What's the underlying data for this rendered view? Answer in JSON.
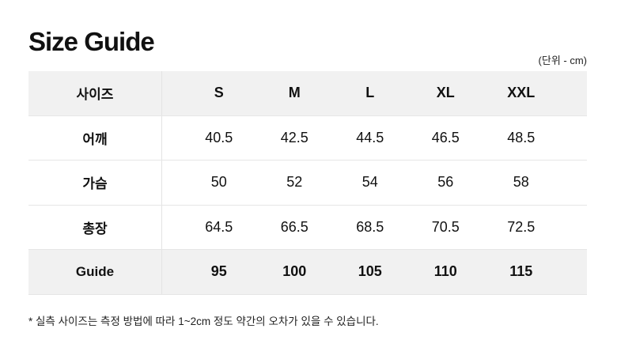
{
  "title": "Size Guide",
  "unit": "(단위 - cm)",
  "table": {
    "header": {
      "label": "사이즈",
      "sizes": [
        "S",
        "M",
        "L",
        "XL",
        "XXL"
      ]
    },
    "rows": [
      {
        "label": "어깨",
        "values": [
          "40.5",
          "42.5",
          "44.5",
          "46.5",
          "48.5"
        ]
      },
      {
        "label": "가슴",
        "values": [
          "50",
          "52",
          "54",
          "56",
          "58"
        ]
      },
      {
        "label": "총장",
        "values": [
          "64.5",
          "66.5",
          "68.5",
          "70.5",
          "72.5"
        ]
      }
    ],
    "guide": {
      "label": "Guide",
      "values": [
        "95",
        "100",
        "105",
        "110",
        "115"
      ]
    }
  },
  "note": "* 실측 사이즈는 측정 방법에 따라 1~2cm 정도 약간의 오차가 있을 수 있습니다."
}
